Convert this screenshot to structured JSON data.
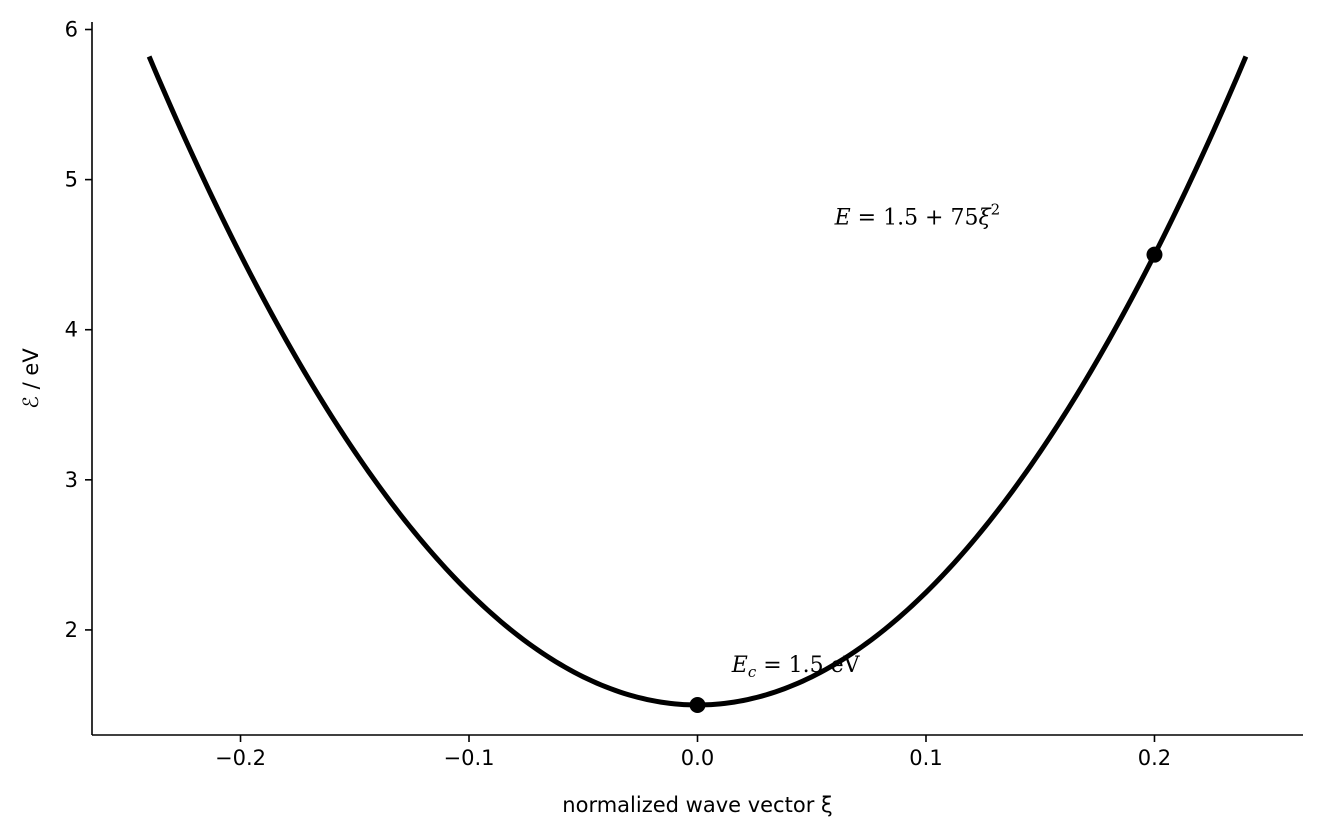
{
  "chart_data": {
    "type": "line",
    "title": "",
    "xlabel": "normalized wave vector ξ",
    "ylabel": "ℰ / eV",
    "xlim": [
      -0.265,
      0.265
    ],
    "ylim": [
      1.3,
      6.05
    ],
    "xticks": [
      -0.2,
      -0.1,
      0.0,
      0.1,
      0.2
    ],
    "xtick_labels": [
      "−0.2",
      "−0.1",
      "0.0",
      "0.1",
      "0.2"
    ],
    "yticks": [
      2,
      3,
      4,
      5,
      6
    ],
    "ytick_labels": [
      "2",
      "3",
      "4",
      "5",
      "6"
    ],
    "grid": false,
    "legend": null,
    "series": [
      {
        "equation": "E = 1.5 + 75ξ²",
        "E0": 1.5,
        "coefficient": 75,
        "x_range": [
          -0.24,
          0.24
        ],
        "color": "#000000"
      }
    ],
    "points": [
      {
        "x": 0.0,
        "y": 1.5
      },
      {
        "x": 0.2,
        "y": 4.5
      }
    ],
    "annotations": [
      {
        "text_parts": [
          "E",
          "c",
          " = 1.5 eV"
        ],
        "x": 0.015,
        "y": 1.72
      },
      {
        "text_parts": [
          "E",
          " = 1.5 + 75",
          "ξ",
          "2"
        ],
        "x": 0.06,
        "y": 4.7
      }
    ]
  }
}
